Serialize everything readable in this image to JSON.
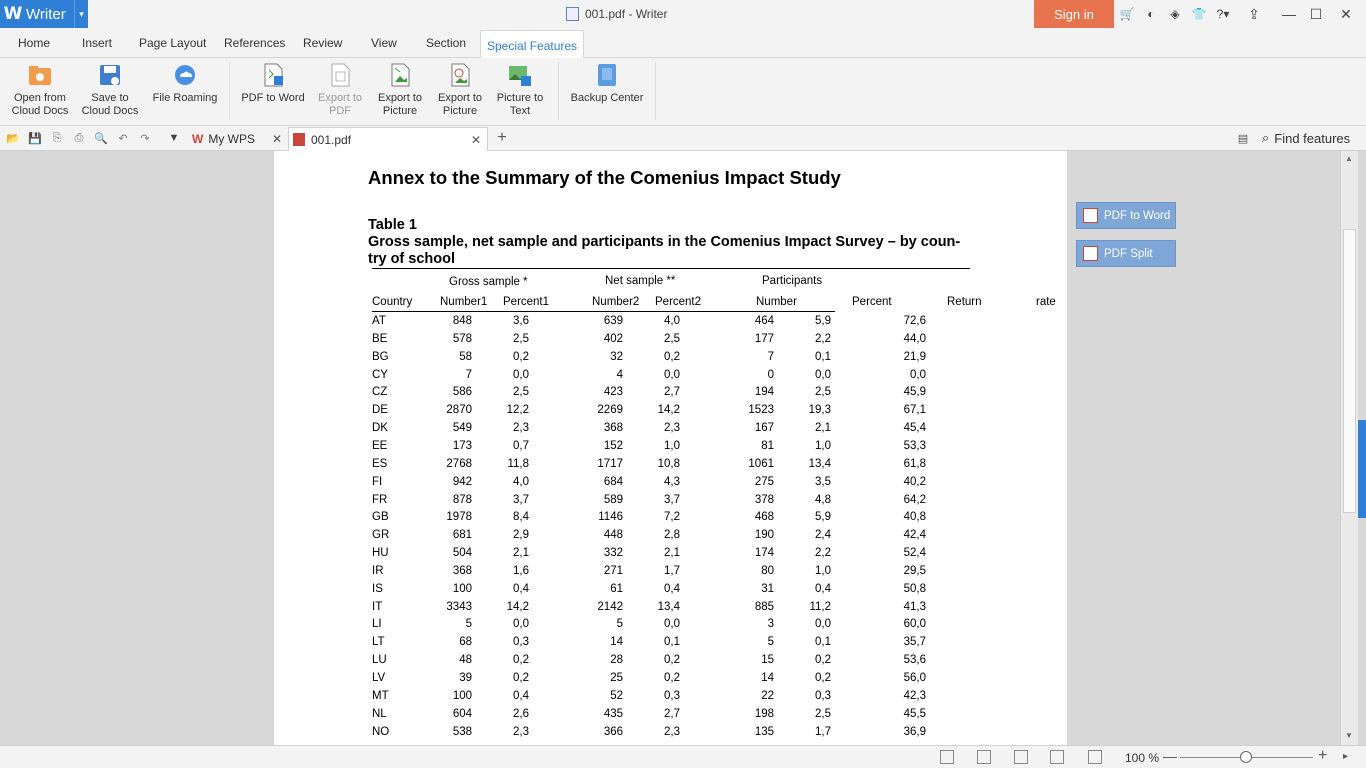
{
  "app": {
    "name": "Writer",
    "window_title": "001.pdf - Writer",
    "sign_in": "Sign in"
  },
  "menu": [
    "Home",
    "Insert",
    "Page Layout",
    "References",
    "Review",
    "View",
    "Section",
    "Special Features"
  ],
  "ribbon": {
    "open_cloud": "Open from\nCloud Docs",
    "save_cloud": "Save to\nCloud Docs",
    "file_roaming": "File Roaming",
    "pdf_to_word": "PDF to Word",
    "export_pdf": "Export to\nPDF",
    "export_picture": "Export to\nPicture",
    "export_to_picture2": "Export to\nPicture",
    "picture_to_text": "Picture to\nText",
    "backup_center": "Backup Center"
  },
  "tabs": {
    "my_wps": "My WPS",
    "doc": "001.pdf",
    "find": "Find features"
  },
  "side_panel": {
    "pdf_to_word": "PDF to Word",
    "pdf_split": "PDF Split"
  },
  "document": {
    "title": "Annex to the Summary of the Comenius Impact Study",
    "table_label": "Table 1",
    "table_caption": "Gross sample, net sample and participants in the Comenius Impact Survey – by coun-try of school",
    "group_headers": {
      "gross": "Gross sample *",
      "net": "Net sample **",
      "participants": "Participants"
    },
    "columns": [
      "Country",
      "Number1",
      "Percent1",
      "Number2",
      "Percent2",
      "Number",
      "Percent",
      "Return",
      "rate"
    ],
    "rows": [
      [
        "AT",
        "848",
        "3,6",
        "639",
        "4,0",
        "464",
        "5,9",
        "72,6"
      ],
      [
        "BE",
        "578",
        "2,5",
        "402",
        "2,5",
        "177",
        "2,2",
        "44,0"
      ],
      [
        "BG",
        "58",
        "0,2",
        "32",
        "0,2",
        "7",
        "0,1",
        "21,9"
      ],
      [
        "CY",
        "7",
        "0,0",
        "4",
        "0,0",
        "0",
        "0,0",
        "0,0"
      ],
      [
        "CZ",
        "586",
        "2,5",
        "423",
        "2,7",
        "194",
        "2,5",
        "45,9"
      ],
      [
        "DE",
        "2870",
        "12,2",
        "2269",
        "14,2",
        "1523",
        "19,3",
        "67,1"
      ],
      [
        "DK",
        "549",
        "2,3",
        "368",
        "2,3",
        "167",
        "2,1",
        "45,4"
      ],
      [
        "EE",
        "173",
        "0,7",
        "152",
        "1,0",
        "81",
        "1,0",
        "53,3"
      ],
      [
        "ES",
        "2768",
        "11,8",
        "1717",
        "10,8",
        "1061",
        "13,4",
        "61,8"
      ],
      [
        "FI",
        "942",
        "4,0",
        "684",
        "4,3",
        "275",
        "3,5",
        "40,2"
      ],
      [
        "FR",
        "878",
        "3,7",
        "589",
        "3,7",
        "378",
        "4,8",
        "64,2"
      ],
      [
        "GB",
        "1978",
        "8,4",
        "1146",
        "7,2",
        "468",
        "5,9",
        "40,8"
      ],
      [
        "GR",
        "681",
        "2,9",
        "448",
        "2,8",
        "190",
        "2,4",
        "42,4"
      ],
      [
        "HU",
        "504",
        "2,1",
        "332",
        "2,1",
        "174",
        "2,2",
        "52,4"
      ],
      [
        "IR",
        "368",
        "1,6",
        "271",
        "1,7",
        "80",
        "1,0",
        "29,5"
      ],
      [
        "IS",
        "100",
        "0,4",
        "61",
        "0,4",
        "31",
        "0,4",
        "50,8"
      ],
      [
        "IT",
        "3343",
        "14,2",
        "2142",
        "13,4",
        "885",
        "11,2",
        "41,3"
      ],
      [
        "LI",
        "5",
        "0,0",
        "5",
        "0,0",
        "3",
        "0,0",
        "60,0"
      ],
      [
        "LT",
        "68",
        "0,3",
        "14",
        "0,1",
        "5",
        "0,1",
        "35,7"
      ],
      [
        "LU",
        "48",
        "0,2",
        "28",
        "0,2",
        "15",
        "0,2",
        "53,6"
      ],
      [
        "LV",
        "39",
        "0,2",
        "25",
        "0,2",
        "14",
        "0,2",
        "56,0"
      ],
      [
        "MT",
        "100",
        "0,4",
        "52",
        "0,3",
        "22",
        "0,3",
        "42,3"
      ],
      [
        "NL",
        "604",
        "2,6",
        "435",
        "2,7",
        "198",
        "2,5",
        "45,5"
      ],
      [
        "NO",
        "538",
        "2,3",
        "366",
        "2,3",
        "135",
        "1,7",
        "36,9"
      ]
    ]
  },
  "status": {
    "zoom": "100 %"
  }
}
